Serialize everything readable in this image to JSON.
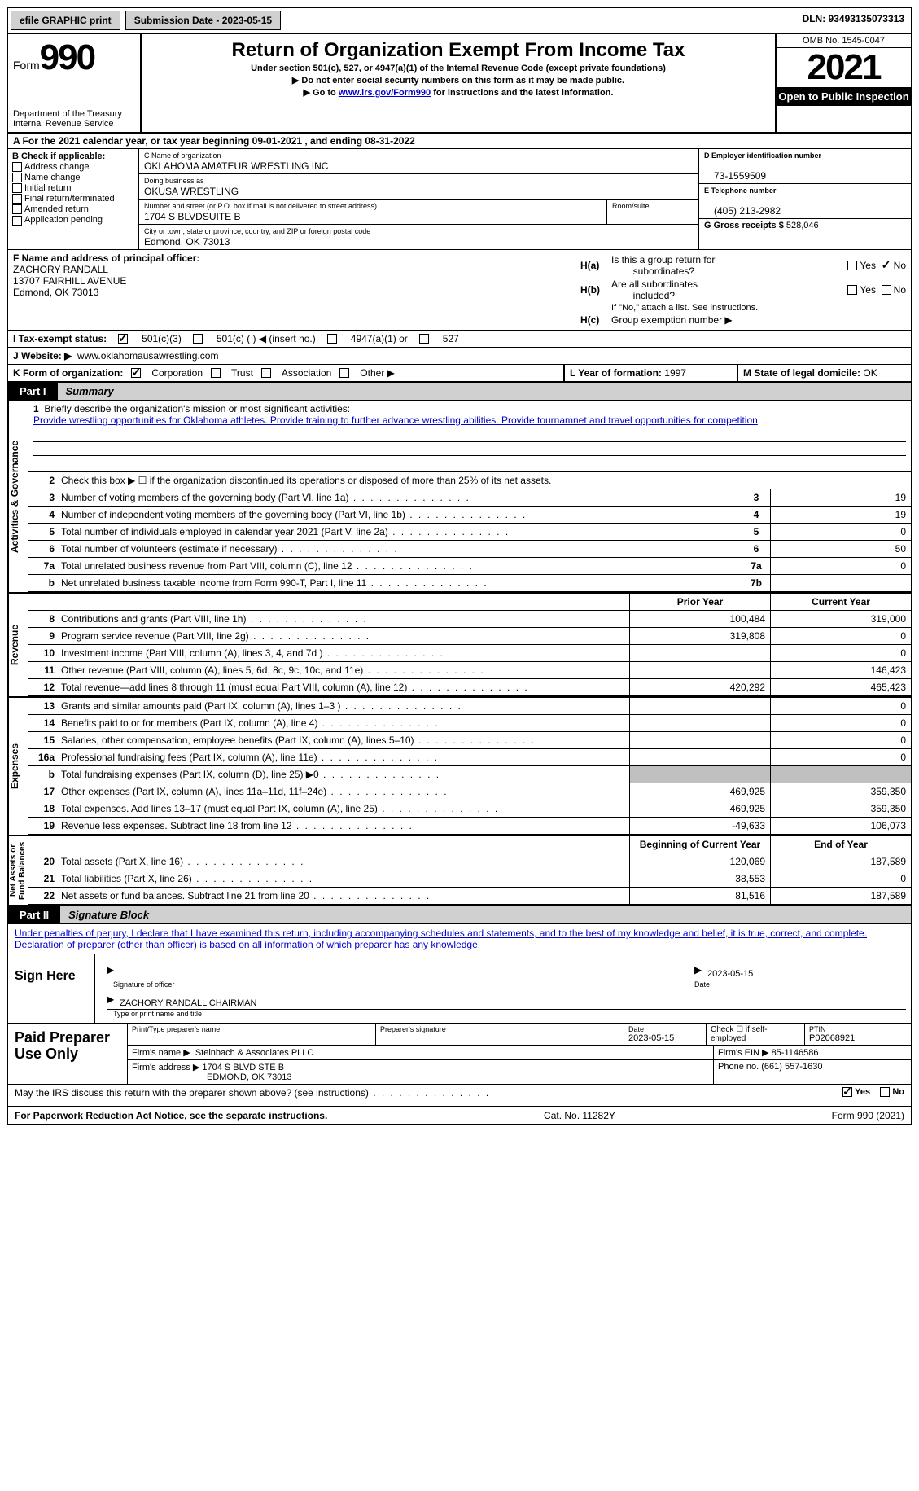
{
  "topbar": {
    "efile": "efile GRAPHIC print",
    "submission": "Submission Date - 2023-05-15",
    "dln": "DLN: 93493135073313"
  },
  "header": {
    "form_label": "Form",
    "form_number": "990",
    "title": "Return of Organization Exempt From Income Tax",
    "sub1": "Under section 501(c), 527, or 4947(a)(1) of the Internal Revenue Code (except private foundations)",
    "sub2": "▶ Do not enter social security numbers on this form as it may be made public.",
    "sub3": "▶ Go to",
    "sub3_link": "www.irs.gov/Form990",
    "sub3_suffix": "for instructions and the latest information.",
    "dept": "Department of the Treasury\nInternal Revenue Service",
    "omb": "OMB No. 1545-0047",
    "year": "2021",
    "inspect": "Open to Public Inspection"
  },
  "section_a": "A For the 2021 calendar year, or tax year beginning 09-01-2021   , and ending 08-31-2022",
  "section_b": {
    "title": "B Check if applicable:",
    "items": [
      "Address change",
      "Name change",
      "Initial return",
      "Final return/terminated",
      "Amended return",
      "Application pending"
    ]
  },
  "section_c": {
    "name_lbl": "C Name of organization",
    "name": "OKLAHOMA AMATEUR WRESTLING INC",
    "dba_lbl": "Doing business as",
    "dba": "OKUSA WRESTLING",
    "street_lbl": "Number and street (or P.O. box if mail is not delivered to street address)",
    "street": "1704 S BLVDSUITE B",
    "room_lbl": "Room/suite",
    "city_lbl": "City or town, state or province, country, and ZIP or foreign postal code",
    "city": "Edmond, OK  73013"
  },
  "section_d": {
    "ein_lbl": "D Employer identification number",
    "ein": "73-1559509",
    "phone_lbl": "E Telephone number",
    "phone": "(405) 213-2982",
    "gross_lbl": "G Gross receipts $",
    "gross": "528,046"
  },
  "section_f": {
    "lbl": "F  Name and address of principal officer:",
    "name": "ZACHORY RANDALL",
    "addr1": "13707 FAIRHILL AVENUE",
    "addr2": "Edmond, OK  73013"
  },
  "section_h": {
    "ha1": "H(a)",
    "ha_txt1": "Is this a group return for",
    "ha_txt2": "subordinates?",
    "hb1": "H(b)",
    "hb_txt1": "Are all subordinates",
    "hb_txt2": "included?",
    "hb_note": "If \"No,\" attach a list. See instructions.",
    "hc1": "H(c)",
    "hc_txt": "Group exemption number ▶",
    "yes": "Yes",
    "no": "No"
  },
  "section_i": {
    "lbl": "I   Tax-exempt status:",
    "opts": [
      "501(c)(3)",
      "501(c) (  ) ◀ (insert no.)",
      "4947(a)(1) or",
      "527"
    ]
  },
  "section_j": {
    "lbl": "J   Website: ▶",
    "val": "www.oklahomausawrestling.com"
  },
  "section_k": {
    "lbl": "K Form of organization:",
    "opts": [
      "Corporation",
      "Trust",
      "Association",
      "Other ▶"
    ]
  },
  "section_l": {
    "lbl": "L Year of formation:",
    "val": "1997"
  },
  "section_m": {
    "lbl": "M State of legal domicile:",
    "val": "OK"
  },
  "part1": {
    "tab": "Part I",
    "title": "Summary"
  },
  "summary": {
    "glabels": [
      "Activities & Governance",
      "Revenue",
      "Expenses",
      "Net Assets or\nFund Balances"
    ],
    "q1_lbl": "1",
    "q1_txt": "Briefly describe the organization's mission or most significant activities:",
    "q1_mission": "Provide wrestling opportunities for Oklahoma athletes. Provide training to further advance wrestling abilities. Provide tournamnet and travel opportunities for competition",
    "q2_lbl": "2",
    "q2_txt": "Check this box ▶ ☐  if the organization discontinued its operations or disposed of more than 25% of its net assets.",
    "rows_top": [
      {
        "n": "3",
        "t": "Number of voting members of the governing body (Part VI, line 1a)",
        "b": "3",
        "v": "19"
      },
      {
        "n": "4",
        "t": "Number of independent voting members of the governing body (Part VI, line 1b)",
        "b": "4",
        "v": "19"
      },
      {
        "n": "5",
        "t": "Total number of individuals employed in calendar year 2021 (Part V, line 2a)",
        "b": "5",
        "v": "0"
      },
      {
        "n": "6",
        "t": "Total number of volunteers (estimate if necessary)",
        "b": "6",
        "v": "50"
      },
      {
        "n": "7a",
        "t": "Total unrelated business revenue from Part VIII, column (C), line 12",
        "b": "7a",
        "v": "0"
      },
      {
        "n": "b",
        "t": "Net unrelated business taxable income from Form 990-T, Part I, line 11",
        "b": "7b",
        "v": ""
      }
    ],
    "col_hdr": {
      "prior": "Prior Year",
      "current": "Current Year",
      "boy": "Beginning of Current Year",
      "eoy": "End of Year"
    },
    "rows_rev": [
      {
        "n": "8",
        "t": "Contributions and grants (Part VIII, line 1h)",
        "p": "100,484",
        "c": "319,000"
      },
      {
        "n": "9",
        "t": "Program service revenue (Part VIII, line 2g)",
        "p": "319,808",
        "c": "0"
      },
      {
        "n": "10",
        "t": "Investment income (Part VIII, column (A), lines 3, 4, and 7d )",
        "p": "",
        "c": "0"
      },
      {
        "n": "11",
        "t": "Other revenue (Part VIII, column (A), lines 5, 6d, 8c, 9c, 10c, and 11e)",
        "p": "",
        "c": "146,423"
      },
      {
        "n": "12",
        "t": "Total revenue—add lines 8 through 11 (must equal Part VIII, column (A), line 12)",
        "p": "420,292",
        "c": "465,423"
      }
    ],
    "rows_exp": [
      {
        "n": "13",
        "t": "Grants and similar amounts paid (Part IX, column (A), lines 1–3 )",
        "p": "",
        "c": "0"
      },
      {
        "n": "14",
        "t": "Benefits paid to or for members (Part IX, column (A), line 4)",
        "p": "",
        "c": "0"
      },
      {
        "n": "15",
        "t": "Salaries, other compensation, employee benefits (Part IX, column (A), lines 5–10)",
        "p": "",
        "c": "0"
      },
      {
        "n": "16a",
        "t": "Professional fundraising fees (Part IX, column (A), line 11e)",
        "p": "",
        "c": "0"
      },
      {
        "n": "b",
        "t": "Total fundraising expenses (Part IX, column (D), line 25) ▶0",
        "p": "_shade_",
        "c": "_shade_"
      },
      {
        "n": "17",
        "t": "Other expenses (Part IX, column (A), lines 11a–11d, 11f–24e)",
        "p": "469,925",
        "c": "359,350"
      },
      {
        "n": "18",
        "t": "Total expenses. Add lines 13–17 (must equal Part IX, column (A), line 25)",
        "p": "469,925",
        "c": "359,350"
      },
      {
        "n": "19",
        "t": "Revenue less expenses. Subtract line 18 from line 12",
        "p": "-49,633",
        "c": "106,073"
      }
    ],
    "rows_net": [
      {
        "n": "20",
        "t": "Total assets (Part X, line 16)",
        "p": "120,069",
        "c": "187,589"
      },
      {
        "n": "21",
        "t": "Total liabilities (Part X, line 26)",
        "p": "38,553",
        "c": "0"
      },
      {
        "n": "22",
        "t": "Net assets or fund balances. Subtract line 21 from line 20",
        "p": "81,516",
        "c": "187,589"
      }
    ]
  },
  "part2": {
    "tab": "Part II",
    "title": "Signature Block"
  },
  "sig_decl": "Under penalties of perjury, I declare that I have examined this return, including accompanying schedules and statements, and to the best of my knowledge and belief, it is true, correct, and complete. Declaration of preparer (other than officer) is based on all information of which preparer has any knowledge.",
  "sign_here": {
    "lbl": "Sign Here",
    "date": "2023-05-15",
    "sig_of_officer": "Signature of officer",
    "date_lbl": "Date",
    "name": "ZACHORY RANDALL  CHAIRMAN",
    "name_lbl": "Type or print name and title"
  },
  "prep": {
    "lbl": "Paid Preparer Use Only",
    "r1": {
      "c1_lbl": "Print/Type preparer's name",
      "c2_lbl": "Preparer's signature",
      "c3_lbl": "Date",
      "c3_val": "2023-05-15",
      "c4_lbl": "Check ☐ if self-employed",
      "c5_lbl": "PTIN",
      "c5_val": "P02068921"
    },
    "r2": {
      "c1_lbl": "Firm's name    ▶",
      "c1_val": "Steinbach & Associates PLLC",
      "c2_lbl": "Firm's EIN ▶",
      "c2_val": "85-1146586"
    },
    "r3": {
      "c1_lbl": "Firm's address ▶",
      "c1_val1": "1704 S BLVD STE B",
      "c1_val2": "EDMOND, OK  73013",
      "c2_lbl": "Phone no.",
      "c2_val": "(661) 557-1630"
    }
  },
  "discuss": {
    "txt": "May the IRS discuss this return with the preparer shown above? (see instructions)",
    "yes": "Yes",
    "no": "No"
  },
  "footer": {
    "left": "For Paperwork Reduction Act Notice, see the separate instructions.",
    "mid": "Cat. No. 11282Y",
    "right": "Form 990 (2021)"
  }
}
